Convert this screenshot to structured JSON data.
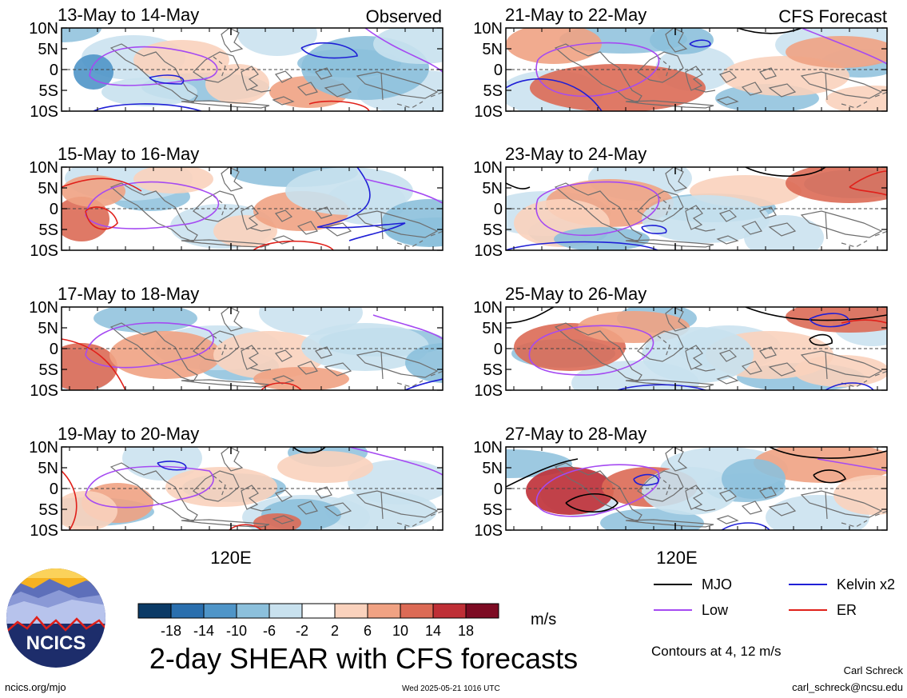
{
  "observed_label": "Observed",
  "forecast_label": "CFS Forecast",
  "ytick_labels": [
    "10N",
    "5N",
    "0",
    "5S",
    "10S"
  ],
  "xtick_label": "120E",
  "chart_data": [
    {
      "type": "heatmap",
      "title": "13-May to 14-May",
      "column": "Observed"
    },
    {
      "type": "heatmap",
      "title": "15-May to 16-May",
      "column": "Observed"
    },
    {
      "type": "heatmap",
      "title": "17-May to 18-May",
      "column": "Observed"
    },
    {
      "type": "heatmap",
      "title": "19-May to 20-May",
      "column": "Observed"
    },
    {
      "type": "heatmap",
      "title": "21-May to 22-May",
      "column": "CFS Forecast"
    },
    {
      "type": "heatmap",
      "title": "23-May to 24-May",
      "column": "CFS Forecast"
    },
    {
      "type": "heatmap",
      "title": "25-May to 26-May",
      "column": "CFS Forecast"
    },
    {
      "type": "heatmap",
      "title": "27-May to 28-May",
      "column": "CFS Forecast"
    }
  ],
  "colorbar": {
    "labels": [
      "-18",
      "-14",
      "-10",
      "-6",
      "-2",
      "2",
      "6",
      "10",
      "14",
      "18"
    ],
    "colors": [
      "#0b3a66",
      "#2a6fae",
      "#4f95c8",
      "#8cc0dc",
      "#c8e1ee",
      "#ffffff",
      "#fad2bd",
      "#f0a283",
      "#dc6a55",
      "#bf2f36",
      "#7d0b23"
    ],
    "unit": "m/s"
  },
  "legend": [
    {
      "label": "MJO",
      "color": "#000000"
    },
    {
      "label": "Low",
      "color": "#a54af2"
    },
    {
      "label": "Kelvin x2",
      "color": "#1f1fd6"
    },
    {
      "label": "ER",
      "color": "#e0201a"
    }
  ],
  "contours_note": "Contours at 4, 12 m/s",
  "main_title": "2-day SHEAR with CFS forecasts",
  "logo_text": "NCICS",
  "footer": {
    "url": "ncics.org/mjo",
    "timestamp": "Wed 2025-05-21 1016 UTC",
    "author": "Carl Schreck",
    "email": "carl_schreck@ncsu.edu"
  }
}
